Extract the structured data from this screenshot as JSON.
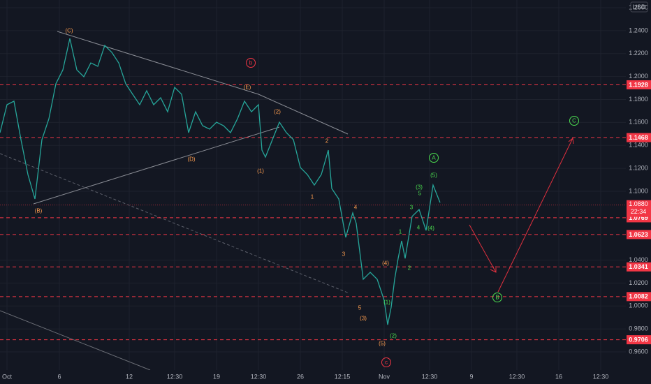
{
  "chart_data": {
    "type": "line",
    "currency": "USD",
    "color": "#26a69a",
    "x": [
      0,
      2,
      4,
      6,
      8,
      10,
      12,
      14,
      16,
      18,
      20,
      22,
      24,
      26,
      28,
      30,
      32,
      34,
      36,
      38,
      40,
      42,
      44,
      46,
      48,
      50,
      52,
      54,
      56,
      58,
      60,
      62,
      64,
      66,
      68,
      70,
      72,
      74,
      75,
      76,
      78,
      80,
      82,
      84,
      86,
      88,
      90,
      92,
      94,
      95,
      97,
      99,
      101,
      102,
      104,
      106,
      108,
      110,
      111,
      112,
      113,
      114,
      115,
      116,
      118,
      120,
      122,
      124,
      126
    ],
    "values": [
      1.1511,
      1.1754,
      1.1785,
      1.145,
      1.1146,
      1.0933,
      1.145,
      1.1632,
      1.1937,
      1.2058,
      1.2332,
      1.2058,
      1.1998,
      1.2119,
      1.2089,
      1.2271,
      1.2211,
      1.2119,
      1.1937,
      1.1845,
      1.1754,
      1.1876,
      1.1754,
      1.1815,
      1.1693,
      1.1906,
      1.1845,
      1.1511,
      1.1693,
      1.1572,
      1.1541,
      1.1602,
      1.1572,
      1.1511,
      1.1632,
      1.1785,
      1.1693,
      1.1754,
      1.1359,
      1.1298,
      1.145,
      1.1602,
      1.1511,
      1.145,
      1.1207,
      1.1146,
      1.1054,
      1.1146,
      1.1359,
      1.1024,
      1.0933,
      1.0598,
      1.0811,
      1.072,
      1.0233,
      1.0294,
      1.0233,
      1.005,
      0.9837,
      0.9989,
      1.0233,
      1.0415,
      1.0568,
      1.0415,
      1.0781,
      1.0841,
      1.0659,
      1.1054,
      1.0902
    ],
    "xlim": [
      0,
      186.4
    ],
    "ylim": [
      0.9442,
      1.2667
    ],
    "xticks": [
      {
        "value": 2,
        "label": "Oct"
      },
      {
        "value": 17,
        "label": "6"
      },
      {
        "value": 37,
        "label": "12"
      },
      {
        "value": 50,
        "label": "12:30"
      },
      {
        "value": 62,
        "label": "19"
      },
      {
        "value": 74,
        "label": "12:30"
      },
      {
        "value": 86,
        "label": "26"
      },
      {
        "value": 98,
        "label": "12:15"
      },
      {
        "value": 110,
        "label": "Nov"
      },
      {
        "value": 123,
        "label": "12:30"
      },
      {
        "value": 135,
        "label": "9"
      },
      {
        "value": 148,
        "label": "12:30"
      },
      {
        "value": 160,
        "label": "16"
      },
      {
        "value": 172,
        "label": "12:30"
      }
    ],
    "yticks": [
      {
        "value": 1.26,
        "label": "1.2600"
      },
      {
        "value": 1.24,
        "label": "1.2400"
      },
      {
        "value": 1.22,
        "label": "1.2200"
      },
      {
        "value": 1.2,
        "label": "1.2000"
      },
      {
        "value": 1.18,
        "label": "1.1800"
      },
      {
        "value": 1.16,
        "label": "1.1600"
      },
      {
        "value": 1.14,
        "label": "1.1400"
      },
      {
        "value": 1.12,
        "label": "1.1200"
      },
      {
        "value": 1.1,
        "label": "1.1000"
      },
      {
        "value": 1.04,
        "label": "1.0400"
      },
      {
        "value": 1.02,
        "label": "1.0200"
      },
      {
        "value": 1.0,
        "label": "1.0000"
      },
      {
        "value": 0.98,
        "label": "0.9800"
      },
      {
        "value": 0.96,
        "label": "0.9600"
      }
    ],
    "grid": true,
    "levels": [
      1.1928,
      1.1468,
      1.0769,
      1.0623,
      1.0341,
      1.0082,
      0.9706
    ],
    "level_color": "#f23645",
    "last_price": {
      "value": 1.088,
      "label": "1.0880"
    },
    "countdown": "22:34",
    "annotations": [
      {
        "text": "(C)",
        "color": "#ff9e4f"
      },
      {
        "text": "(B)",
        "color": "#ff9e4f"
      },
      {
        "text": "(D)",
        "color": "#ff9e4f"
      },
      {
        "text": "(E)",
        "color": "#ff9e4f"
      },
      {
        "text": "(2)",
        "color": "#ff9e4f"
      },
      {
        "text": "(1)",
        "color": "#ff9e4f"
      },
      {
        "text": "2",
        "color": "#ff9e4f"
      },
      {
        "text": "1",
        "color": "#ff9e4f"
      },
      {
        "text": "4",
        "color": "#ff9e4f"
      },
      {
        "text": "3",
        "color": "#ff9e4f"
      },
      {
        "text": "5",
        "color": "#ff9e4f"
      },
      {
        "text": "(3)",
        "color": "#ff9e4f"
      },
      {
        "text": "(4)",
        "color": "#ff9e4f"
      },
      {
        "text": "(5)",
        "color": "#ff9e4f"
      },
      {
        "text": "(1)",
        "color": "#4cdf50"
      },
      {
        "text": "(2)",
        "color": "#4cdf50"
      },
      {
        "text": "1",
        "color": "#4cdf50"
      },
      {
        "text": "2",
        "color": "#4cdf50"
      },
      {
        "text": "3",
        "color": "#4cdf50"
      },
      {
        "text": "(3)",
        "color": "#4cdf50"
      },
      {
        "text": "5",
        "color": "#4cdf50"
      },
      {
        "text": "4",
        "color": "#4cdf50"
      },
      {
        "text": "(4)",
        "color": "#4cdf50"
      },
      {
        "text": "(5)",
        "color": "#4cdf50"
      },
      {
        "text": "A",
        "color": "#4cdf50",
        "circled": true
      },
      {
        "text": "B",
        "color": "#4cdf50",
        "circled": true
      },
      {
        "text": "C",
        "color": "#4cdf50",
        "circled": true
      },
      {
        "text": "b",
        "color": "#f23645",
        "circled": true
      },
      {
        "text": "c",
        "color": "#f23645",
        "circled": true
      }
    ]
  }
}
